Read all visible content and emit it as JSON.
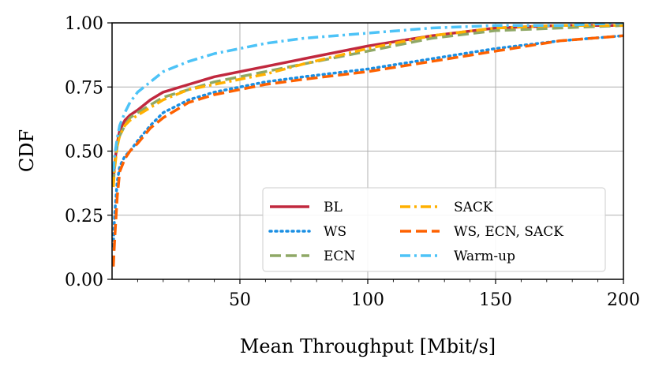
{
  "chart_data": {
    "type": "line",
    "title": "",
    "xlabel": "Mean Throughput [Mbit/s]",
    "ylabel": "CDF",
    "xlim": [
      0,
      200
    ],
    "ylim": [
      0,
      1
    ],
    "xticks": [
      50,
      100,
      150,
      200
    ],
    "xtick_labels": [
      "50",
      "100",
      "150",
      "200"
    ],
    "yticks": [
      0,
      0.25,
      0.5,
      0.75,
      1.0
    ],
    "ytick_labels": [
      "0.00",
      "0.25",
      "0.50",
      "0.75",
      "1.00"
    ],
    "grid": true,
    "legend_position": "lower-right",
    "series": [
      {
        "name": "BL",
        "color": "#c1283e",
        "style": "solid",
        "x": [
          0.5,
          1,
          2,
          3,
          5,
          7,
          10,
          15,
          20,
          30,
          40,
          50,
          60,
          75,
          100,
          125,
          150,
          175,
          200
        ],
        "y": [
          0.39,
          0.45,
          0.53,
          0.58,
          0.62,
          0.64,
          0.66,
          0.7,
          0.73,
          0.76,
          0.79,
          0.81,
          0.83,
          0.86,
          0.91,
          0.95,
          0.98,
          0.99,
          0.99
        ]
      },
      {
        "name": "WS",
        "color": "#1a8fe3",
        "style": "dotted",
        "x": [
          0.5,
          1,
          2,
          3,
          5,
          7,
          10,
          15,
          20,
          30,
          40,
          50,
          60,
          75,
          100,
          125,
          150,
          175,
          200
        ],
        "y": [
          0.13,
          0.25,
          0.38,
          0.44,
          0.48,
          0.5,
          0.54,
          0.6,
          0.65,
          0.7,
          0.73,
          0.75,
          0.77,
          0.79,
          0.82,
          0.86,
          0.9,
          0.93,
          0.95
        ]
      },
      {
        "name": "ECN",
        "color": "#8fa866",
        "style": "dashed",
        "x": [
          0.5,
          1,
          2,
          3,
          5,
          7,
          10,
          15,
          20,
          30,
          40,
          50,
          60,
          75,
          100,
          125,
          150,
          175,
          200
        ],
        "y": [
          0.37,
          0.44,
          0.52,
          0.56,
          0.6,
          0.63,
          0.65,
          0.68,
          0.71,
          0.74,
          0.77,
          0.79,
          0.81,
          0.84,
          0.89,
          0.94,
          0.97,
          0.98,
          0.99
        ]
      },
      {
        "name": "SACK",
        "color": "#ffb000",
        "style": "dashdot",
        "x": [
          0.5,
          1,
          2,
          3,
          5,
          7,
          10,
          15,
          20,
          30,
          40,
          50,
          60,
          75,
          100,
          125,
          150,
          175,
          200
        ],
        "y": [
          0.36,
          0.43,
          0.52,
          0.56,
          0.6,
          0.62,
          0.64,
          0.67,
          0.7,
          0.74,
          0.76,
          0.78,
          0.8,
          0.84,
          0.9,
          0.95,
          0.98,
          0.99,
          0.99
        ]
      },
      {
        "name": "WS, ECN, SACK",
        "color": "#fe6100",
        "style": "dashed",
        "x": [
          0.5,
          1,
          2,
          3,
          5,
          7,
          10,
          15,
          20,
          30,
          40,
          50,
          60,
          75,
          100,
          125,
          150,
          175,
          200
        ],
        "y": [
          0.05,
          0.15,
          0.32,
          0.42,
          0.47,
          0.5,
          0.53,
          0.59,
          0.63,
          0.69,
          0.72,
          0.74,
          0.76,
          0.78,
          0.81,
          0.85,
          0.89,
          0.93,
          0.95
        ]
      },
      {
        "name": "Warm-up",
        "color": "#4dc3f7",
        "style": "dashdot",
        "x": [
          0.5,
          1,
          2,
          3,
          5,
          7,
          10,
          15,
          20,
          30,
          40,
          50,
          60,
          75,
          100,
          125,
          150,
          175,
          200
        ],
        "y": [
          0.42,
          0.48,
          0.55,
          0.6,
          0.65,
          0.69,
          0.73,
          0.77,
          0.81,
          0.85,
          0.88,
          0.9,
          0.92,
          0.94,
          0.96,
          0.98,
          0.99,
          0.99,
          1.0
        ]
      }
    ]
  }
}
